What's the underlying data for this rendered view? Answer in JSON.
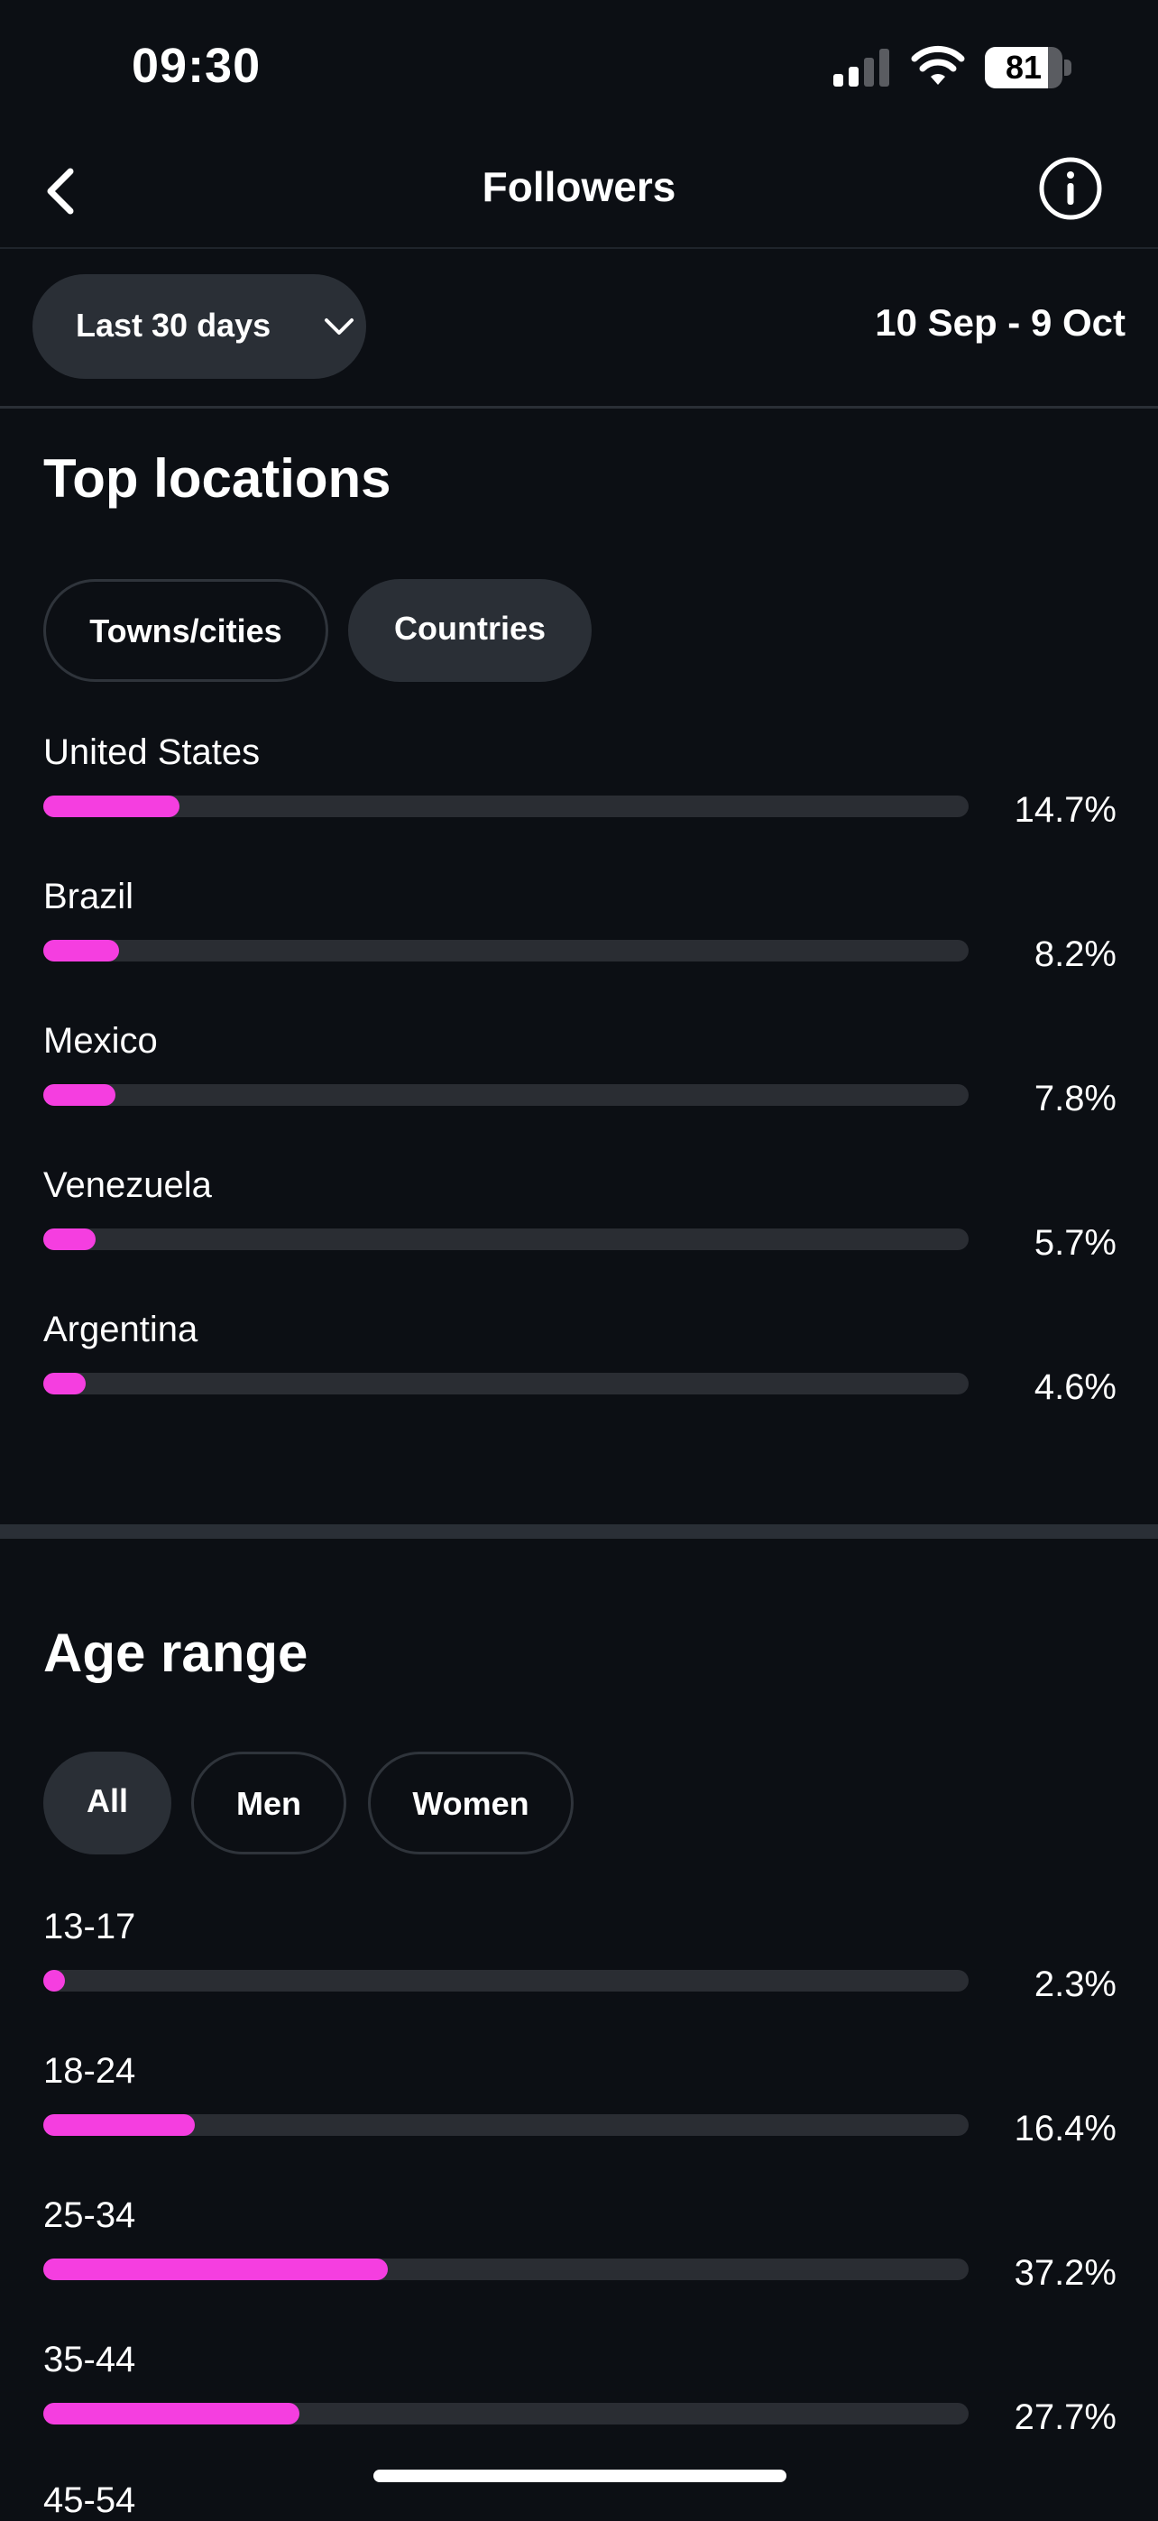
{
  "status_bar": {
    "time": "09:30",
    "battery": "81",
    "battery_level": 0.81
  },
  "header": {
    "title": "Followers"
  },
  "date_filter": {
    "selected": "Last 30 days",
    "range": "10 Sep - 9 Oct"
  },
  "top_locations": {
    "title": "Top locations",
    "tabs": [
      {
        "label": "Towns/cities",
        "selected": false
      },
      {
        "label": "Countries",
        "selected": true
      }
    ],
    "items": [
      {
        "name": "United States",
        "percent": "14.7%",
        "value": 14.7
      },
      {
        "name": "Brazil",
        "percent": "8.2%",
        "value": 8.2
      },
      {
        "name": "Mexico",
        "percent": "7.8%",
        "value": 7.8
      },
      {
        "name": "Venezuela",
        "percent": "5.7%",
        "value": 5.7
      },
      {
        "name": "Argentina",
        "percent": "4.6%",
        "value": 4.6
      }
    ]
  },
  "age_range": {
    "title": "Age range",
    "tabs": [
      {
        "label": "All",
        "selected": true
      },
      {
        "label": "Men",
        "selected": false
      },
      {
        "label": "Women",
        "selected": false
      }
    ],
    "items": [
      {
        "name": "13-17",
        "percent": "2.3%",
        "value": 2.3
      },
      {
        "name": "18-24",
        "percent": "16.4%",
        "value": 16.4
      },
      {
        "name": "25-34",
        "percent": "37.2%",
        "value": 37.2
      },
      {
        "name": "35-44",
        "percent": "27.7%",
        "value": 27.7
      },
      {
        "name": "45-54"
      }
    ]
  },
  "colors": {
    "accent": "#f53ee0",
    "background": "#0c0f14",
    "track": "#2a2d33",
    "chip": "#2a2f36"
  }
}
